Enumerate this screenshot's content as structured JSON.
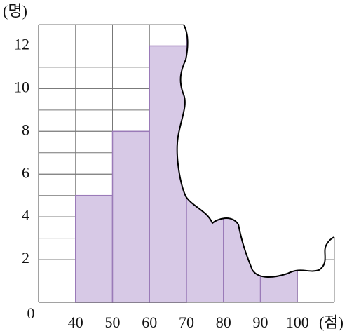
{
  "chart_data": {
    "type": "histogram",
    "ylabel": "(명)",
    "xlabel": "(점)",
    "bins": [
      40,
      50,
      60,
      70,
      80,
      90,
      100
    ],
    "counts": [
      5,
      8,
      12,
      null,
      null,
      null
    ],
    "color": "#d7c9e6",
    "edge_color": "#9a7ab8",
    "xlim": [
      30,
      110
    ],
    "ylim": [
      0,
      13
    ],
    "yticks": [
      0,
      2,
      4,
      6,
      8,
      10,
      12
    ],
    "grid": true
  }
}
